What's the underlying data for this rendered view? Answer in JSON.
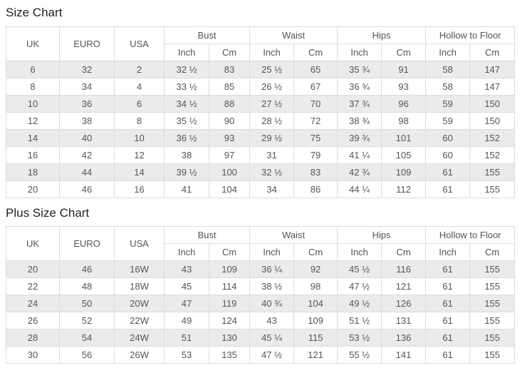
{
  "colors": {
    "border": "#dcdcdc",
    "stripe": "#ebebeb",
    "text": "#555555",
    "title_text": "#222222",
    "bg": "#ffffff"
  },
  "tables": [
    {
      "title": "Size Chart",
      "headers": {
        "uk": "UK",
        "euro": "EURO",
        "usa": "USA",
        "bust": "Bust",
        "waist": "Waist",
        "hips": "Hips",
        "hollow_to_floor": "Hollow to Floor",
        "inch": "Inch",
        "cm": "Cm"
      },
      "rows": [
        [
          "6",
          "32",
          "2",
          "32 ½",
          "83",
          "25 ½",
          "65",
          "35 ¾",
          "91",
          "58",
          "147"
        ],
        [
          "8",
          "34",
          "4",
          "33 ½",
          "85",
          "26 ½",
          "67",
          "36 ¾",
          "93",
          "58",
          "147"
        ],
        [
          "10",
          "36",
          "6",
          "34 ½",
          "88",
          "27 ½",
          "70",
          "37 ¾",
          "96",
          "59",
          "150"
        ],
        [
          "12",
          "38",
          "8",
          "35 ½",
          "90",
          "28 ½",
          "72",
          "38 ¾",
          "98",
          "59",
          "150"
        ],
        [
          "14",
          "40",
          "10",
          "36 ½",
          "93",
          "29 ½",
          "75",
          "39 ¾",
          "101",
          "60",
          "152"
        ],
        [
          "16",
          "42",
          "12",
          "38",
          "97",
          "31",
          "79",
          "41 ¼",
          "105",
          "60",
          "152"
        ],
        [
          "18",
          "44",
          "14",
          "39 ½",
          "100",
          "32 ½",
          "83",
          "42 ¾",
          "109",
          "61",
          "155"
        ],
        [
          "20",
          "46",
          "16",
          "41",
          "104",
          "34",
          "86",
          "44 ¼",
          "112",
          "61",
          "155"
        ]
      ]
    },
    {
      "title": "Plus Size Chart",
      "headers": {
        "uk": "UK",
        "euro": "EURO",
        "usa": "USA",
        "bust": "Bust",
        "waist": "Waist",
        "hips": "Hips",
        "hollow_to_floor": "Hollow to Floor",
        "inch": "Inch",
        "cm": "Cm"
      },
      "rows": [
        [
          "20",
          "46",
          "16W",
          "43",
          "109",
          "36 ¼",
          "92",
          "45 ½",
          "116",
          "61",
          "155"
        ],
        [
          "22",
          "48",
          "18W",
          "45",
          "114",
          "38 ½",
          "98",
          "47 ½",
          "121",
          "61",
          "155"
        ],
        [
          "24",
          "50",
          "20W",
          "47",
          "119",
          "40 ¾",
          "104",
          "49 ½",
          "126",
          "61",
          "155"
        ],
        [
          "26",
          "52",
          "22W",
          "49",
          "124",
          "43",
          "109",
          "51 ½",
          "131",
          "61",
          "155"
        ],
        [
          "28",
          "54",
          "24W",
          "51",
          "130",
          "45 ¼",
          "115",
          "53 ½",
          "136",
          "61",
          "155"
        ],
        [
          "30",
          "56",
          "26W",
          "53",
          "135",
          "47 ½",
          "121",
          "55 ½",
          "141",
          "61",
          "155"
        ]
      ]
    }
  ]
}
